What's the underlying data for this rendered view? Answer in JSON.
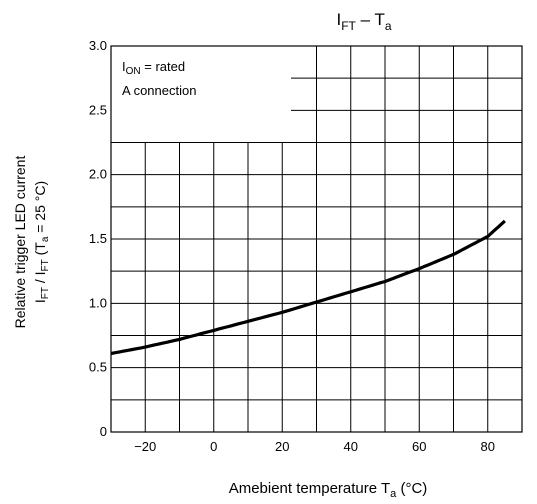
{
  "chart_data": {
    "type": "line",
    "title": {
      "main": "I",
      "main_sub": "FT",
      "sep": " – T",
      "sep_sub": "a"
    },
    "xlabel": {
      "text": "Amebient temperature   T",
      "sub": "a",
      "unit": " (°C)"
    },
    "ylabel": {
      "line1": "Relative trigger LED current",
      "line2": {
        "a": "I",
        "a_sub": "FT",
        "b": " / I",
        "b_sub": "FT",
        "c": "   (T",
        "c_sub": "a",
        "d": " = 25 °C)"
      }
    },
    "xlim": [
      -30,
      90
    ],
    "ylim": [
      0,
      3.0
    ],
    "x_ticks": [
      -20,
      0,
      20,
      40,
      60,
      80
    ],
    "x_tick_labels": [
      "−20",
      "0",
      "20",
      "40",
      "60",
      "80"
    ],
    "y_ticks": [
      0,
      0.5,
      1.0,
      1.5,
      2.0,
      2.5,
      3.0
    ],
    "y_tick_labels": [
      "0",
      "0.5",
      "1.0",
      "1.5",
      "2.0",
      "2.5",
      "3.0"
    ],
    "grid": true,
    "series": [
      {
        "x": [
          -30,
          -20,
          -10,
          0,
          10,
          20,
          30,
          40,
          50,
          60,
          70,
          80,
          85
        ],
        "y": [
          0.61,
          0.66,
          0.72,
          0.79,
          0.86,
          0.93,
          1.01,
          1.09,
          1.17,
          1.27,
          1.38,
          1.52,
          1.64
        ]
      }
    ],
    "legend": {
      "line1": {
        "a": "I",
        "a_sub": "ON",
        "b": " = rated"
      },
      "line2": "A connection"
    }
  }
}
